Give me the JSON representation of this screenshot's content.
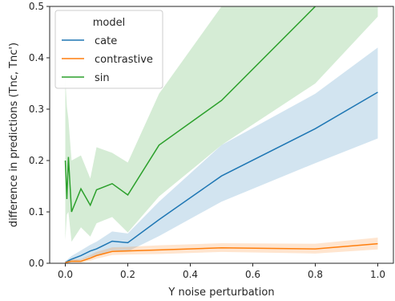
{
  "chart_data": {
    "type": "line",
    "xlabel": "Y noise perturbation",
    "ylabel": "difference in predictions (Tnc, Tnc')",
    "xlim": [
      -0.05,
      1.05
    ],
    "ylim": [
      0.0,
      0.5
    ],
    "xticks": [
      "0.0",
      "0.2",
      "0.4",
      "0.6",
      "0.8",
      "1.0"
    ],
    "yticks": [
      "0.0",
      "0.1",
      "0.2",
      "0.3",
      "0.4",
      "0.5"
    ],
    "grid": false,
    "legend": {
      "title": "model",
      "placement": "top-left"
    },
    "series": [
      {
        "name": "cate",
        "color": "#1f77b4",
        "x": [
          0.0,
          0.005,
          0.01,
          0.02,
          0.05,
          0.08,
          0.1,
          0.15,
          0.2,
          0.3,
          0.5,
          0.8,
          1.0
        ],
        "y": [
          0.002,
          0.003,
          0.005,
          0.008,
          0.015,
          0.024,
          0.028,
          0.043,
          0.04,
          0.085,
          0.17,
          0.262,
          0.333
        ],
        "lower": [
          0.0,
          0.0,
          0.001,
          0.003,
          0.006,
          0.012,
          0.015,
          0.025,
          0.023,
          0.053,
          0.12,
          0.195,
          0.243
        ],
        "upper": [
          0.004,
          0.006,
          0.009,
          0.014,
          0.025,
          0.036,
          0.042,
          0.062,
          0.058,
          0.12,
          0.23,
          0.33,
          0.42
        ]
      },
      {
        "name": "contrastive",
        "color": "#ff7f0e",
        "x": [
          0.0,
          0.005,
          0.01,
          0.02,
          0.05,
          0.08,
          0.1,
          0.15,
          0.2,
          0.3,
          0.5,
          0.8,
          1.0
        ],
        "y": [
          0.001,
          0.002,
          0.003,
          0.004,
          0.004,
          0.01,
          0.015,
          0.023,
          0.024,
          0.026,
          0.03,
          0.028,
          0.038
        ],
        "lower": [
          0.0,
          0.0,
          0.0,
          0.001,
          0.001,
          0.005,
          0.009,
          0.016,
          0.017,
          0.018,
          0.022,
          0.019,
          0.027
        ],
        "upper": [
          0.003,
          0.004,
          0.006,
          0.008,
          0.008,
          0.016,
          0.022,
          0.031,
          0.032,
          0.035,
          0.039,
          0.038,
          0.05
        ]
      },
      {
        "name": "sin",
        "color": "#2ca02c",
        "x": [
          0.0,
          0.005,
          0.01,
          0.02,
          0.05,
          0.08,
          0.1,
          0.15,
          0.2,
          0.3,
          0.5,
          0.8,
          1.0
        ],
        "y": [
          0.2,
          0.125,
          0.207,
          0.1,
          0.145,
          0.113,
          0.143,
          0.155,
          0.133,
          0.23,
          0.317,
          0.5,
          0.62
        ],
        "lower": [
          0.045,
          0.095,
          0.1,
          0.042,
          0.07,
          0.052,
          0.078,
          0.09,
          0.06,
          0.13,
          0.23,
          0.35,
          0.48
        ],
        "upper": [
          0.36,
          0.305,
          0.28,
          0.2,
          0.21,
          0.165,
          0.226,
          0.215,
          0.196,
          0.33,
          0.5,
          0.7,
          0.8
        ]
      }
    ]
  }
}
